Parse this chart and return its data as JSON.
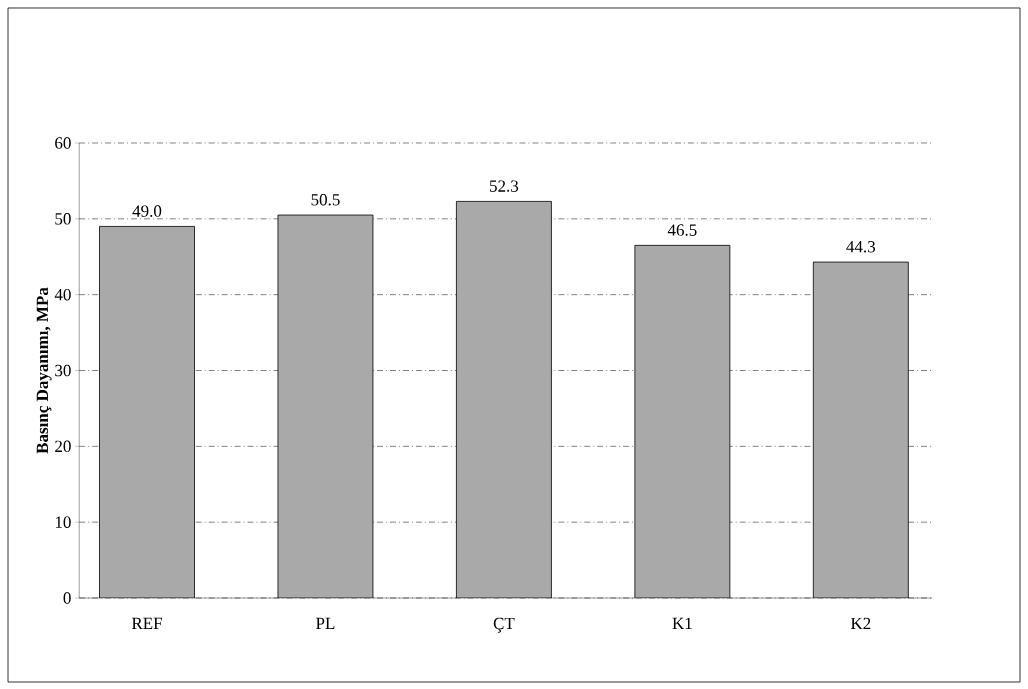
{
  "chart_data": {
    "type": "bar",
    "ylabel": "Basınç Dayanımı, MPa",
    "categories": [
      "REF",
      "PL",
      "ÇT",
      "K1",
      "K2"
    ],
    "values": [
      49.0,
      50.5,
      52.3,
      46.5,
      44.3
    ],
    "value_labels": [
      "49.0",
      "50.5",
      "52.3",
      "46.5",
      "44.3"
    ],
    "color": "#a9a9a9",
    "ylim": [
      0,
      60
    ],
    "yticks": [
      0,
      10,
      20,
      30,
      40,
      50,
      60
    ],
    "grid": "y"
  }
}
